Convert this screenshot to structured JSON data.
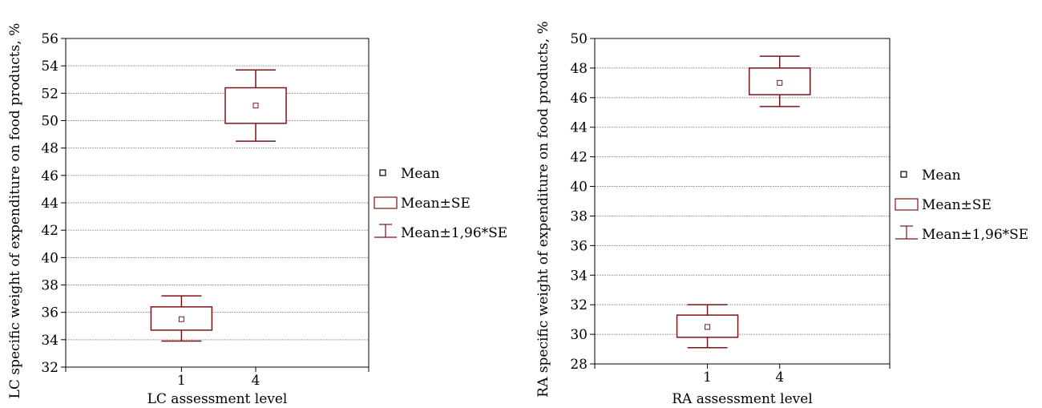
{
  "colors": {
    "series": "#7b1416",
    "grid": "#a0a0a0",
    "axis": "#000000"
  },
  "chart_data": [
    {
      "type": "box",
      "xlabel": "LC assessment level",
      "ylabel": "LC specific weight of expenditure on food products, %",
      "ylim": [
        32,
        56
      ],
      "yticks": [
        32,
        34,
        36,
        38,
        40,
        42,
        44,
        46,
        48,
        50,
        52,
        54,
        56
      ],
      "categories": [
        "1",
        "4"
      ],
      "grid": "horizontal",
      "legend_position": "right",
      "legend": [
        "Mean",
        "Mean±SE",
        "Mean±1,96*SE"
      ],
      "series": [
        {
          "category": "1",
          "mean": 35.5,
          "se_low": 34.7,
          "se_high": 36.4,
          "ci_low": 33.9,
          "ci_high": 37.2
        },
        {
          "category": "4",
          "mean": 51.1,
          "se_low": 49.8,
          "se_high": 52.4,
          "ci_low": 48.5,
          "ci_high": 53.7
        }
      ]
    },
    {
      "type": "box",
      "xlabel": "RA assessment  level",
      "ylabel": "RA specific weight of expenditure on food products, %",
      "ylim": [
        28,
        50
      ],
      "yticks": [
        28,
        30,
        32,
        34,
        36,
        38,
        40,
        42,
        44,
        46,
        48,
        50
      ],
      "categories": [
        "1",
        "4"
      ],
      "grid": "horizontal",
      "legend_position": "right",
      "legend": [
        "Mean",
        "Mean±SE",
        "Mean±1,96*SE"
      ],
      "series": [
        {
          "category": "1",
          "mean": 30.5,
          "se_low": 29.8,
          "se_high": 31.3,
          "ci_low": 29.1,
          "ci_high": 32.0
        },
        {
          "category": "4",
          "mean": 47.0,
          "se_low": 46.2,
          "se_high": 48.0,
          "ci_low": 45.4,
          "ci_high": 48.8
        }
      ]
    }
  ]
}
